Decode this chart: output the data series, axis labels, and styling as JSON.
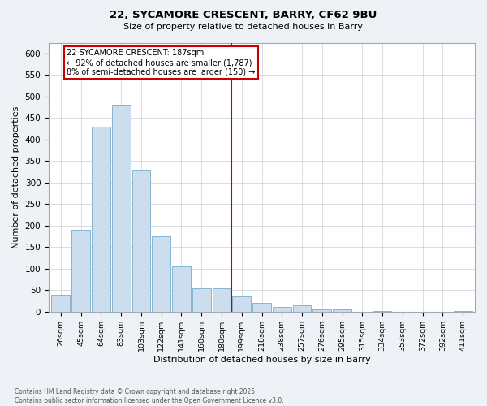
{
  "title": "22, SYCAMORE CRESCENT, BARRY, CF62 9BU",
  "subtitle": "Size of property relative to detached houses in Barry",
  "xlabel": "Distribution of detached houses by size in Barry",
  "ylabel": "Number of detached properties",
  "bin_labels": [
    "26sqm",
    "45sqm",
    "64sqm",
    "83sqm",
    "103sqm",
    "122sqm",
    "141sqm",
    "160sqm",
    "180sqm",
    "199sqm",
    "218sqm",
    "238sqm",
    "257sqm",
    "276sqm",
    "295sqm",
    "315sqm",
    "334sqm",
    "353sqm",
    "372sqm",
    "392sqm",
    "411sqm"
  ],
  "bar_heights": [
    40,
    190,
    430,
    480,
    330,
    175,
    105,
    55,
    55,
    35,
    20,
    10,
    15,
    5,
    5,
    0,
    2,
    0,
    0,
    0,
    1
  ],
  "bar_color": "#ccdded",
  "bar_edge_color": "#7aaccc",
  "vline_color": "#cc0000",
  "annotation_title": "22 SYCAMORE CRESCENT: 187sqm",
  "annotation_line1": "← 92% of detached houses are smaller (1,787)",
  "annotation_line2": "8% of semi-detached houses are larger (150) →",
  "annotation_box_color": "#cc0000",
  "ylim": [
    0,
    625
  ],
  "yticks": [
    0,
    50,
    100,
    150,
    200,
    250,
    300,
    350,
    400,
    450,
    500,
    550,
    600
  ],
  "footnote": "Contains HM Land Registry data © Crown copyright and database right 2025.\nContains public sector information licensed under the Open Government Licence v3.0.",
  "bg_color": "#eef2f6",
  "plot_bg_color": "#ffffff",
  "grid_color": "#c8d0d8"
}
